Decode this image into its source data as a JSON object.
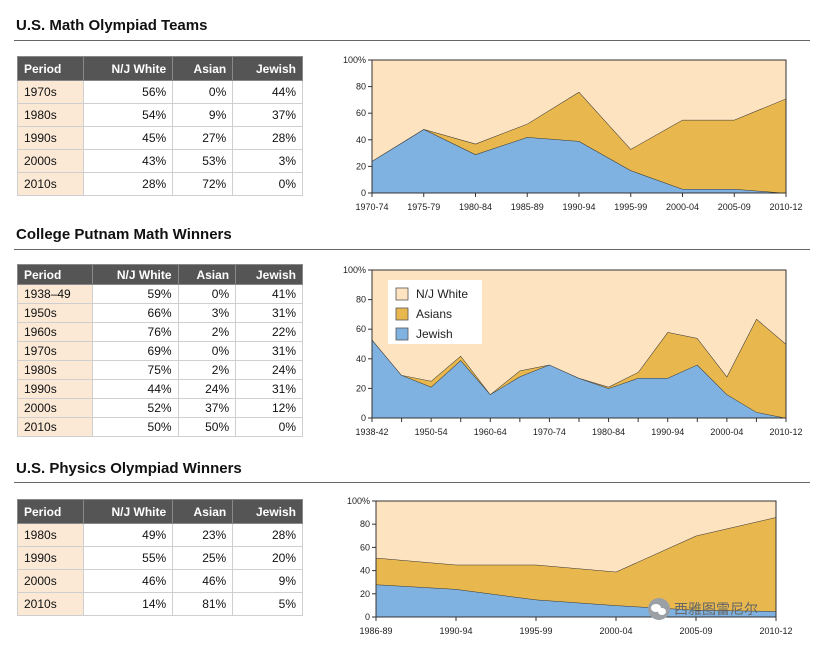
{
  "colors": {
    "white": "#fde3c0",
    "asian": "#e8b84f",
    "jewish": "#7fb2e0",
    "header_bg": "#555555",
    "period_bg": "#fbe9d6"
  },
  "icons": [
    "wechat-icon"
  ],
  "watermark": "西雅图雷尼尔",
  "sections": [
    {
      "title": "U.S. Math Olympiad Teams",
      "table": {
        "headers": [
          "Period",
          "N/J White",
          "Asian",
          "Jewish"
        ],
        "rows": [
          [
            "1970s",
            "56%",
            "0%",
            "44%"
          ],
          [
            "1980s",
            "54%",
            "9%",
            "37%"
          ],
          [
            "1990s",
            "45%",
            "27%",
            "28%"
          ],
          [
            "2000s",
            "43%",
            "53%",
            "3%"
          ],
          [
            "2010s",
            "28%",
            "72%",
            "0%"
          ]
        ]
      }
    },
    {
      "title": "College Putnam Math Winners",
      "table": {
        "headers": [
          "Period",
          "N/J White",
          "Asian",
          "Jewish"
        ],
        "rows": [
          [
            "1938–49",
            "59%",
            "0%",
            "41%"
          ],
          [
            "1950s",
            "66%",
            "3%",
            "31%"
          ],
          [
            "1960s",
            "76%",
            "2%",
            "22%"
          ],
          [
            "1970s",
            "69%",
            "0%",
            "31%"
          ],
          [
            "1980s",
            "75%",
            "2%",
            "24%"
          ],
          [
            "1990s",
            "44%",
            "24%",
            "31%"
          ],
          [
            "2000s",
            "52%",
            "37%",
            "12%"
          ],
          [
            "2010s",
            "50%",
            "50%",
            "0%"
          ]
        ]
      }
    },
    {
      "title": "U.S. Physics Olympiad Winners",
      "table": {
        "headers": [
          "Period",
          "N/J White",
          "Asian",
          "Jewish"
        ],
        "rows": [
          [
            "1980s",
            "49%",
            "23%",
            "28%"
          ],
          [
            "1990s",
            "55%",
            "25%",
            "20%"
          ],
          [
            "2000s",
            "46%",
            "46%",
            "9%"
          ],
          [
            "2010s",
            "14%",
            "81%",
            "5%"
          ]
        ]
      }
    }
  ],
  "chart_data": [
    {
      "type": "area",
      "stacked": true,
      "x": [
        "1970-74",
        "1975-79",
        "1980-84",
        "1985-89",
        "1990-94",
        "1995-99",
        "2000-04",
        "2005-09",
        "2010-12"
      ],
      "yticks": [
        "0",
        "20",
        "40",
        "60",
        "80",
        "100%"
      ],
      "ylim": [
        0,
        100
      ],
      "series": [
        {
          "name": "Jewish",
          "color": "#7fb2e0",
          "values": [
            24,
            48,
            29,
            42,
            39,
            17,
            3,
            3,
            0
          ]
        },
        {
          "name": "Asians",
          "color": "#e8b84f",
          "values": [
            0,
            0,
            8,
            10,
            37,
            16,
            52,
            52,
            71
          ]
        },
        {
          "name": "N/J White",
          "color": "#fde3c0",
          "values": [
            76,
            52,
            63,
            48,
            24,
            67,
            45,
            45,
            29
          ]
        }
      ],
      "legend": null
    },
    {
      "type": "area",
      "stacked": true,
      "x": [
        "1938-42",
        "",
        "1950-54",
        "",
        "1960-64",
        "",
        "1970-74",
        "",
        "1980-84",
        "",
        "1990-94",
        "",
        "2000-04",
        "",
        "2010-12"
      ],
      "yticks": [
        "0",
        "20",
        "40",
        "60",
        "80",
        "100%"
      ],
      "ylim": [
        0,
        100
      ],
      "series": [
        {
          "name": "Jewish",
          "color": "#7fb2e0",
          "values": [
            53,
            29,
            21,
            39,
            16,
            28,
            36,
            27,
            20,
            27,
            27,
            36,
            16,
            4,
            0
          ]
        },
        {
          "name": "Asians",
          "color": "#e8b84f",
          "values": [
            0,
            0,
            4,
            3,
            0,
            4,
            0,
            0,
            1,
            4,
            31,
            18,
            12,
            63,
            50
          ]
        },
        {
          "name": "N/J White",
          "color": "#fde3c0",
          "values": [
            47,
            71,
            75,
            58,
            84,
            68,
            64,
            73,
            79,
            69,
            42,
            46,
            72,
            33,
            50
          ]
        }
      ],
      "legend": {
        "placement": "top-left",
        "entries": [
          "N/J White",
          "Asians",
          "Jewish"
        ]
      }
    },
    {
      "type": "area",
      "stacked": true,
      "x": [
        "1986-89",
        "1990-94",
        "1995-99",
        "2000-04",
        "2005-09",
        "2010-12"
      ],
      "yticks": [
        "0",
        "20",
        "40",
        "60",
        "80",
        "100%"
      ],
      "ylim": [
        0,
        100
      ],
      "series": [
        {
          "name": "Jewish",
          "color": "#7fb2e0",
          "values": [
            28,
            24,
            15,
            10,
            6,
            5
          ]
        },
        {
          "name": "Asians",
          "color": "#e8b84f",
          "values": [
            23,
            21,
            30,
            29,
            64,
            81
          ]
        },
        {
          "name": "N/J White",
          "color": "#fde3c0",
          "values": [
            49,
            55,
            55,
            61,
            30,
            14
          ]
        }
      ],
      "legend": null
    }
  ]
}
